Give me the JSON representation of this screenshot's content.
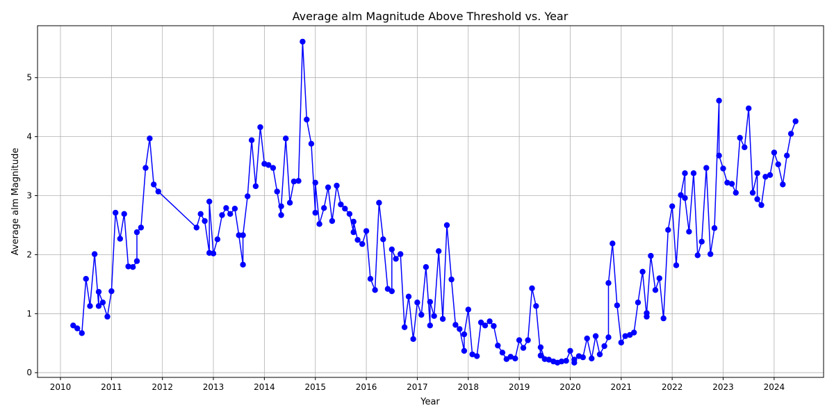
{
  "chart_data": {
    "type": "line",
    "title": "Average alm Magnitude Above Threshold vs. Year",
    "xlabel": "Year",
    "ylabel": "Average alm Magnitude",
    "xlim": [
      2009.55,
      2024.97
    ],
    "ylim": [
      -0.08,
      5.88
    ],
    "x_ticks": [
      2010,
      2011,
      2012,
      2013,
      2014,
      2015,
      2016,
      2017,
      2018,
      2019,
      2020,
      2021,
      2022,
      2023,
      2024
    ],
    "y_ticks": [
      0,
      1,
      2,
      3,
      4,
      5
    ],
    "grid": true,
    "color": "#0000ff",
    "series": [
      {
        "marker": "circle",
        "x": [
          2010.25,
          2010.33,
          2010.42,
          2010.5,
          2010.58,
          2010.67,
          2010.75,
          2010.75,
          2010.83,
          2010.92,
          2011.0,
          2011.08,
          2011.17,
          2011.25,
          2011.33,
          2011.42,
          2011.5,
          2011.5,
          2011.58,
          2011.67,
          2011.75,
          2011.83,
          2011.92,
          2012.67,
          2012.75,
          2012.83,
          2012.92,
          2012.92,
          2013.0,
          2013.08,
          2013.17,
          2013.25,
          2013.33,
          2013.42,
          2013.5,
          2013.58,
          2013.58,
          2013.67,
          2013.75,
          2013.83,
          2013.92,
          2014.0,
          2014.08,
          2014.17,
          2014.25,
          2014.33,
          2014.33,
          2014.42,
          2014.5,
          2014.58,
          2014.67,
          2014.75,
          2014.83,
          2014.92,
          2015.0,
          2015.0,
          2015.08,
          2015.17,
          2015.25,
          2015.33,
          2015.42,
          2015.5,
          2015.58,
          2015.67,
          2015.75,
          2015.75,
          2015.83,
          2015.92,
          2016.0,
          2016.08,
          2016.17,
          2016.25,
          2016.33,
          2016.42,
          2016.5,
          2016.5,
          2016.58,
          2016.67,
          2016.75,
          2016.83,
          2016.92,
          2017.0,
          2017.08,
          2017.17,
          2017.25,
          2017.25,
          2017.33,
          2017.42,
          2017.5,
          2017.58,
          2017.67,
          2017.75,
          2017.83,
          2017.92,
          2017.92,
          2018.0,
          2018.08,
          2018.17,
          2018.25,
          2018.33,
          2018.42,
          2018.5,
          2018.58,
          2018.67,
          2018.75,
          2018.83,
          2018.92,
          2019.0,
          2019.08,
          2019.17,
          2019.25,
          2019.33,
          2019.42,
          2019.42,
          2019.5,
          2019.58,
          2019.67,
          2019.75,
          2019.83,
          2019.92,
          2020.0,
          2020.08,
          2020.08,
          2020.17,
          2020.25,
          2020.33,
          2020.42,
          2020.5,
          2020.58,
          2020.67,
          2020.75,
          2020.75,
          2020.83,
          2020.92,
          2021.0,
          2021.08,
          2021.17,
          2021.25,
          2021.33,
          2021.42,
          2021.5,
          2021.5,
          2021.58,
          2021.67,
          2021.75,
          2021.83,
          2021.92,
          2022.0,
          2022.08,
          2022.17,
          2022.25,
          2022.25,
          2022.33,
          2022.42,
          2022.5,
          2022.58,
          2022.67,
          2022.75,
          2022.83,
          2022.92,
          2022.92,
          2023.0,
          2023.08,
          2023.17,
          2023.25,
          2023.33,
          2023.42,
          2023.5,
          2023.58,
          2023.67,
          2023.67,
          2023.75,
          2023.83,
          2023.92,
          2024.0,
          2024.08,
          2024.17,
          2024.25,
          2024.33,
          2024.42
        ],
        "y": [
          0.8,
          0.75,
          0.67,
          1.59,
          1.13,
          2.01,
          1.13,
          1.37,
          1.19,
          0.95,
          1.38,
          2.71,
          2.27,
          2.69,
          1.8,
          1.79,
          1.89,
          2.38,
          2.46,
          3.47,
          3.97,
          3.19,
          3.07,
          2.46,
          2.69,
          2.57,
          2.03,
          2.9,
          2.02,
          2.26,
          2.67,
          2.79,
          2.69,
          2.78,
          2.33,
          1.83,
          2.33,
          2.99,
          3.94,
          3.16,
          4.16,
          3.54,
          3.52,
          3.47,
          3.07,
          2.67,
          2.82,
          3.97,
          2.88,
          3.24,
          3.25,
          5.61,
          4.29,
          3.88,
          2.71,
          3.22,
          2.52,
          2.79,
          3.14,
          2.57,
          3.17,
          2.85,
          2.78,
          2.69,
          2.38,
          2.56,
          2.25,
          2.18,
          2.4,
          1.59,
          1.4,
          2.88,
          2.26,
          1.42,
          1.38,
          2.09,
          1.93,
          2.01,
          0.77,
          1.29,
          0.57,
          1.19,
          0.98,
          1.79,
          0.8,
          1.2,
          0.96,
          2.06,
          0.91,
          2.5,
          1.58,
          0.81,
          0.74,
          0.37,
          0.65,
          1.07,
          0.31,
          0.28,
          0.85,
          0.8,
          0.87,
          0.79,
          0.46,
          0.34,
          0.23,
          0.27,
          0.24,
          0.55,
          0.42,
          0.55,
          1.43,
          1.13,
          0.29,
          0.43,
          0.23,
          0.22,
          0.19,
          0.17,
          0.19,
          0.2,
          0.37,
          0.17,
          0.22,
          0.28,
          0.26,
          0.58,
          0.24,
          0.62,
          0.31,
          0.45,
          0.6,
          1.52,
          2.19,
          1.14,
          0.51,
          0.62,
          0.64,
          0.68,
          1.19,
          1.71,
          0.95,
          1.01,
          1.98,
          1.4,
          1.6,
          0.92,
          2.42,
          2.82,
          1.82,
          3.01,
          3.38,
          2.96,
          2.39,
          3.38,
          1.99,
          2.22,
          3.47,
          2.01,
          2.45,
          4.61,
          3.68,
          3.46,
          3.22,
          3.2,
          3.05,
          3.98,
          3.82,
          4.48,
          3.05,
          3.38,
          2.94,
          2.84,
          3.32,
          3.35,
          3.73,
          3.53,
          3.19,
          3.68,
          4.05,
          4.26
        ]
      }
    ]
  }
}
